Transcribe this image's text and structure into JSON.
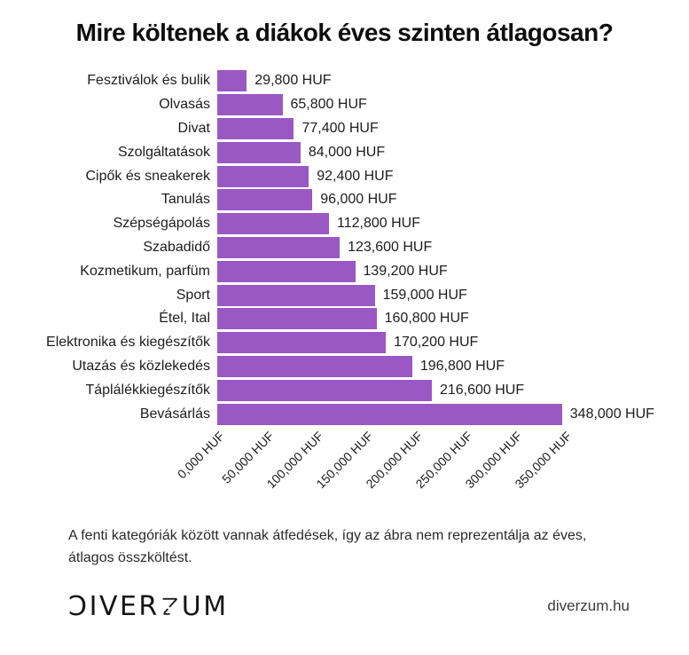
{
  "chart_data": {
    "type": "bar",
    "orientation": "horizontal",
    "title": "Mire költenek a diákok éves szinten átlagosan?",
    "unit": "HUF",
    "categories": [
      "Fesztiválok és bulik",
      "Olvasás",
      "Divat",
      "Szolgáltatások",
      "Cipők és sneakerek",
      "Tanulás",
      "Szépségápolás",
      "Szabadidő",
      "Kozmetikum, parfüm",
      "Sport",
      "Étel, Ital",
      "Elektronika és kiegészítők",
      "Utazás és közlekedés",
      "Táplálékkiegészítők",
      "Bevásárlás"
    ],
    "values": [
      29800,
      65800,
      77400,
      84000,
      92400,
      96000,
      112800,
      123600,
      139200,
      159000,
      160800,
      170200,
      196800,
      216600,
      348000
    ],
    "value_labels": [
      "29,800 HUF",
      "65,800 HUF",
      "77,400 HUF",
      "84,000 HUF",
      "92,400 HUF",
      "96,000 HUF",
      "112,800 HUF",
      "123,600 HUF",
      "139,200 HUF",
      "159,000 HUF",
      "160,800 HUF",
      "170,200 HUF",
      "196,800 HUF",
      "216,600 HUF",
      "348,000 HUF"
    ],
    "x_tick_values": [
      0,
      50000,
      100000,
      150000,
      200000,
      250000,
      300000,
      350000
    ],
    "x_tick_labels": [
      "0,000 HUF",
      "50,000 HUF",
      "100,000 HUF",
      "150,000 HUF",
      "200,000 HUF",
      "250,000 HUF",
      "300,000 HUF",
      "350,000 HUF"
    ],
    "xlim": [
      0,
      350000
    ],
    "tick_label_rotation_deg": 45,
    "grid": false,
    "legend": null,
    "bar_color": "#9a58c5"
  },
  "footnote": {
    "line1": "A fenti kategóriák között vannak átfedések, így az ábra nem reprezentálja az éves,",
    "line2": "átlagos összköltést."
  },
  "footer": {
    "logo_text": "DIVERZUM",
    "logo_display": {
      "pre": "ƆIVER",
      "post": "UM"
    },
    "website": "diverzum.hu"
  }
}
